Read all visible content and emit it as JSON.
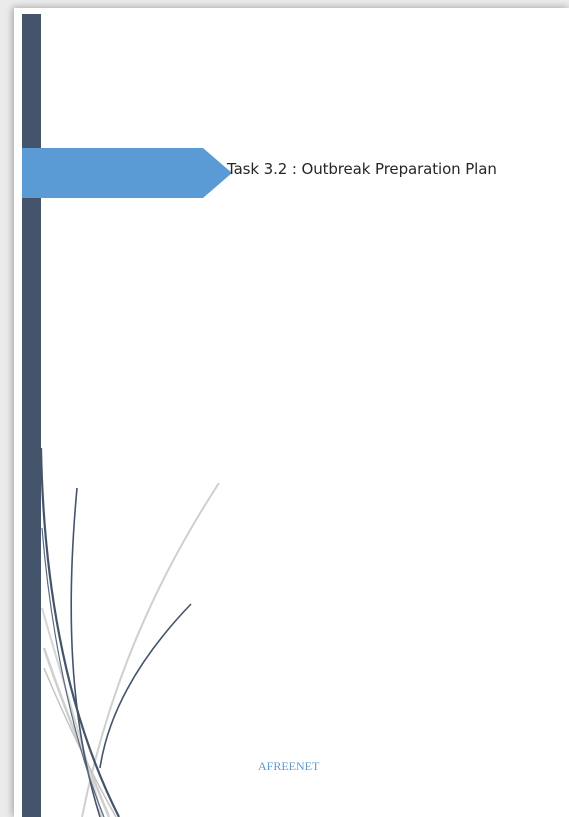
{
  "document": {
    "title": "Task 3.2 : Outbreak Preparation Plan",
    "organization": "AFREENET"
  },
  "colors": {
    "sidebar": "#44546a",
    "banner": "#5b9bd5",
    "swirl_dark": "#44546a",
    "swirl_light": "#c9c9c9",
    "organization_text": "#5b9bd5"
  }
}
